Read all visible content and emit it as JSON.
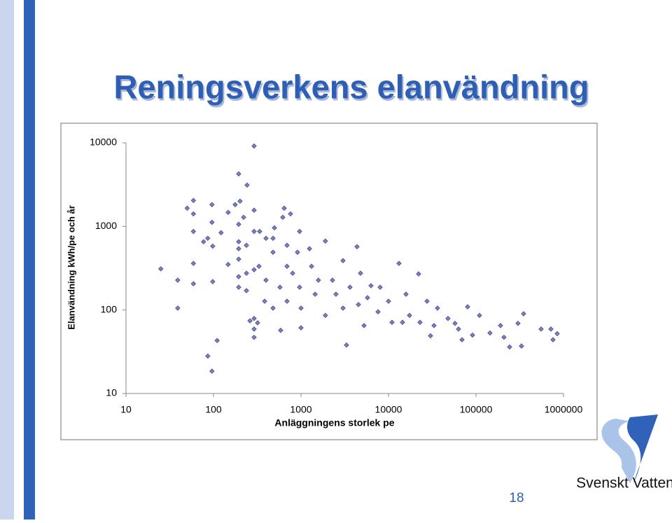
{
  "slide": {
    "title": "Reningsverkens elanvändning",
    "page_number": "18",
    "logo_text": "Svenskt Vatten"
  },
  "chart_data": {
    "type": "scatter",
    "xlabel": "Anläggningens storlek pe",
    "ylabel": "Elanvändning kWh/pe och år",
    "xscale": "log",
    "yscale": "log",
    "xlim": [
      10,
      1000000
    ],
    "ylim": [
      10,
      10000
    ],
    "xticks": [
      10,
      100,
      1000,
      10000,
      100000,
      1000000
    ],
    "yticks": [
      10,
      100,
      1000,
      10000
    ],
    "color": "#7b80c0",
    "x": [
      25,
      39,
      39,
      59,
      50,
      59,
      59,
      59,
      59,
      86,
      96,
      96,
      96,
      98,
      98,
      110,
      86,
      77,
      122,
      147,
      147,
      177,
      201,
      194,
      242,
      291,
      194,
      194,
      194,
      194,
      194,
      194,
      221,
      238,
      238,
      238,
      261,
      291,
      291,
      291,
      291,
      291,
      291,
      319,
      331,
      337,
      384,
      398,
      398,
      479,
      479,
      479,
      497,
      575,
      586,
      619,
      643,
      692,
      692,
      692,
      759,
      802,
      912,
      964,
      964,
      1000,
      1000,
      1250,
      1320,
      1450,
      1580,
      1900,
      1900,
      2290,
      2510,
      3020,
      3020,
      3310,
      3630,
      4370,
      4530,
      4790,
      5250,
      5750,
      6310,
      7590,
      8020,
      10000,
      10960,
      13180,
      14450,
      15850,
      17380,
      22080,
      22910,
      27540,
      30200,
      33110,
      36310,
      47860,
      57540,
      63100,
      69180,
      80170,
      91200,
      109600,
      144500,
      190500,
      208900,
      242100,
      302000,
      331100,
      350000,
      554600,
      717800,
      758600,
      847000
    ],
    "values": [
      310,
      227,
      105,
      2040,
      1650,
      1410,
      870,
      360,
      206,
      28,
      18.5,
      1820,
      1120,
      580,
      218,
      43,
      720,
      655,
      840,
      1470,
      350,
      1820,
      2000,
      4250,
      3120,
      9160,
      1060,
      655,
      540,
      405,
      250,
      187,
      1285,
      594,
      275,
      170,
      74,
      1560,
      870,
      303,
      79,
      59,
      47,
      70,
      333,
      870,
      127,
      227,
      720,
      720,
      490,
      105,
      962,
      187,
      57,
      1285,
      1650,
      594,
      333,
      127,
      1410,
      275,
      490,
      870,
      187,
      105,
      61,
      540,
      333,
      154,
      227,
      667,
      86,
      227,
      154,
      389,
      105,
      38,
      187,
      571,
      116,
      275,
      65,
      140,
      195,
      95,
      187,
      127,
      71,
      360,
      71,
      154,
      86,
      270,
      71,
      127,
      49,
      65,
      105,
      79,
      69,
      59,
      44,
      109,
      50,
      86,
      53,
      65,
      47,
      36,
      69,
      37,
      90,
      59,
      59,
      44,
      52
    ]
  }
}
